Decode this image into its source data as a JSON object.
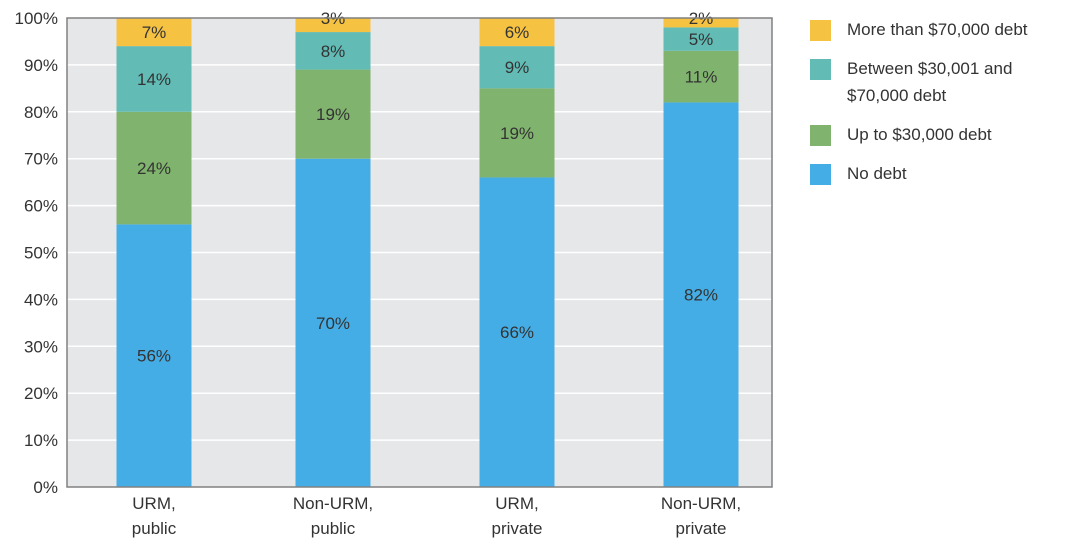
{
  "chart_data": {
    "type": "bar",
    "stacked": true,
    "categories": [
      [
        "URM,",
        "public"
      ],
      [
        "Non-URM,",
        "public"
      ],
      [
        "URM,",
        "private"
      ],
      [
        "Non-URM,",
        "private"
      ]
    ],
    "series": [
      {
        "name": "No debt",
        "color": "#45ADE5",
        "values": [
          56,
          70,
          66,
          82
        ]
      },
      {
        "name": "Up to $30,000 debt",
        "color": "#80B36E",
        "values": [
          24,
          19,
          19,
          11
        ]
      },
      {
        "name": "Between $30,001 and $70,000 debt",
        "color": "#62BBB4",
        "values": [
          14,
          8,
          9,
          5
        ]
      },
      {
        "name": "More than $70,000 debt",
        "color": "#F5C242",
        "values": [
          7,
          3,
          6,
          2
        ]
      }
    ],
    "ylim": [
      0,
      100
    ],
    "yticks": [
      "0%",
      "10%",
      "20%",
      "30%",
      "40%",
      "50%",
      "60%",
      "70%",
      "80%",
      "90%",
      "100%"
    ],
    "grid": true,
    "legend_position": "right"
  },
  "legend": {
    "items": [
      {
        "label_lines": [
          "More than $70,000 debt"
        ],
        "color": "#F5C242"
      },
      {
        "label_lines": [
          "Between $30,001 and",
          "$70,000 debt"
        ],
        "color": "#62BBB4"
      },
      {
        "label_lines": [
          "Up to $30,000 debt"
        ],
        "color": "#80B36E"
      },
      {
        "label_lines": [
          "No debt"
        ],
        "color": "#45ADE5"
      }
    ]
  },
  "colors": {
    "plot_background": "#E6E7E9",
    "gridline": "#FFFFFF",
    "axis": "#808080"
  }
}
